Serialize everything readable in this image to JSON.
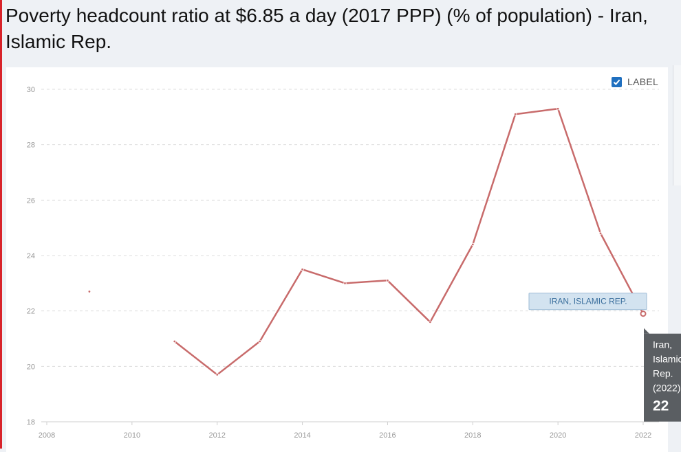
{
  "page": {
    "title": "Poverty headcount ratio at $6.85 a day (2017 PPP) (% of population) - Iran, Islamic Rep."
  },
  "controls": {
    "label_toggle": "LABEL",
    "label_checked": true
  },
  "chart_data": {
    "type": "line",
    "title": "Poverty headcount ratio at $6.85 a day (2017 PPP) (% of population) - Iran, Islamic Rep.",
    "xlabel": "",
    "ylabel": "",
    "xlim": [
      2008,
      2022
    ],
    "ylim": [
      18,
      30
    ],
    "x_ticks": [
      2008,
      2010,
      2012,
      2014,
      2016,
      2018,
      2020,
      2022
    ],
    "y_ticks": [
      18,
      20,
      22,
      24,
      26,
      28,
      30
    ],
    "grid": true,
    "line_color": "#c86b6b",
    "series": [
      {
        "name": "IRAN, ISLAMIC REP.",
        "points": [
          {
            "x": 2009,
            "y": 22.7
          },
          {
            "x": 2011,
            "y": 20.9
          },
          {
            "x": 2012,
            "y": 19.7
          },
          {
            "x": 2013,
            "y": 20.9
          },
          {
            "x": 2014,
            "y": 23.5
          },
          {
            "x": 2015,
            "y": 23.0
          },
          {
            "x": 2016,
            "y": 23.1
          },
          {
            "x": 2017,
            "y": 21.6
          },
          {
            "x": 2018,
            "y": 24.4
          },
          {
            "x": 2019,
            "y": 29.1
          },
          {
            "x": 2020,
            "y": 29.3
          },
          {
            "x": 2021,
            "y": 24.8
          },
          {
            "x": 2022,
            "y": 21.9
          }
        ]
      }
    ],
    "series_label": "IRAN, ISLAMIC REP.",
    "tooltip": {
      "lines": [
        "Iran,",
        "Islamic",
        "Rep.",
        "(2022)"
      ],
      "value": "22"
    }
  }
}
